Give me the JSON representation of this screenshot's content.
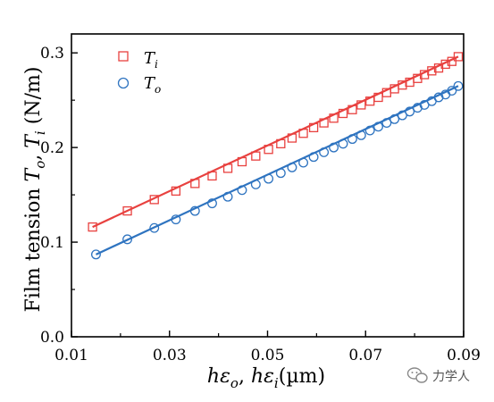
{
  "chart_data": {
    "type": "scatter",
    "xlabel_parts": {
      "h1": "h",
      "e1": "ε",
      "s1": "o",
      "sep": ", ",
      "h2": "h",
      "e2": "ε",
      "s2": "i",
      "unit": "(µm)"
    },
    "ylabel_parts": {
      "prefix": "Film tension ",
      "T1": "T",
      "s1": "o",
      "sep": ", ",
      "T2": "T",
      "s2": "i",
      "unit": " (N/m)"
    },
    "xlim": [
      0.01,
      0.09
    ],
    "ylim": [
      0.0,
      0.32
    ],
    "xticks": [
      "0.01",
      "0.03",
      "0.05",
      "0.07",
      "0.09"
    ],
    "yticks": [
      "0.0",
      "0.1",
      "0.2",
      "0.3"
    ],
    "legend_position": "top-left",
    "series": [
      {
        "name_main": "T",
        "name_sub": "i",
        "marker": "square",
        "color": "#e8413f",
        "fit_line": {
          "x": [
            0.0143,
            0.0889
          ],
          "y": [
            0.116,
            0.296
          ]
        },
        "points": {
          "x": [
            0.0143,
            0.0214,
            0.0269,
            0.0313,
            0.0352,
            0.0387,
            0.0419,
            0.0448,
            0.0476,
            0.0502,
            0.0527,
            0.055,
            0.0573,
            0.0594,
            0.0615,
            0.0635,
            0.0654,
            0.0673,
            0.0691,
            0.0709,
            0.0726,
            0.0743,
            0.0759,
            0.0775,
            0.079,
            0.0806,
            0.082,
            0.0835,
            0.0849,
            0.0863,
            0.0876,
            0.0889
          ],
          "y": [
            0.116,
            0.133,
            0.145,
            0.154,
            0.162,
            0.17,
            0.178,
            0.185,
            0.191,
            0.198,
            0.204,
            0.21,
            0.215,
            0.221,
            0.226,
            0.231,
            0.236,
            0.24,
            0.245,
            0.249,
            0.253,
            0.258,
            0.262,
            0.266,
            0.269,
            0.273,
            0.277,
            0.281,
            0.284,
            0.288,
            0.291,
            0.296
          ]
        }
      },
      {
        "name_main": "T",
        "name_sub": "o",
        "marker": "circle",
        "color": "#2f74c0",
        "fit_line": {
          "x": [
            0.015,
            0.0889
          ],
          "y": [
            0.087,
            0.265
          ]
        },
        "points": {
          "x": [
            0.015,
            0.0214,
            0.0269,
            0.0313,
            0.0352,
            0.0387,
            0.0419,
            0.0448,
            0.0476,
            0.0502,
            0.0527,
            0.055,
            0.0573,
            0.0594,
            0.0615,
            0.0635,
            0.0654,
            0.0673,
            0.0691,
            0.0709,
            0.0726,
            0.0743,
            0.0759,
            0.0775,
            0.079,
            0.0806,
            0.082,
            0.0835,
            0.0849,
            0.0863,
            0.0876,
            0.0889
          ],
          "y": [
            0.087,
            0.103,
            0.115,
            0.124,
            0.133,
            0.141,
            0.148,
            0.155,
            0.161,
            0.167,
            0.173,
            0.179,
            0.184,
            0.19,
            0.195,
            0.2,
            0.204,
            0.209,
            0.213,
            0.218,
            0.222,
            0.226,
            0.23,
            0.234,
            0.238,
            0.242,
            0.245,
            0.249,
            0.253,
            0.256,
            0.26,
            0.265
          ]
        }
      }
    ]
  },
  "watermark": {
    "text": "力学人"
  }
}
